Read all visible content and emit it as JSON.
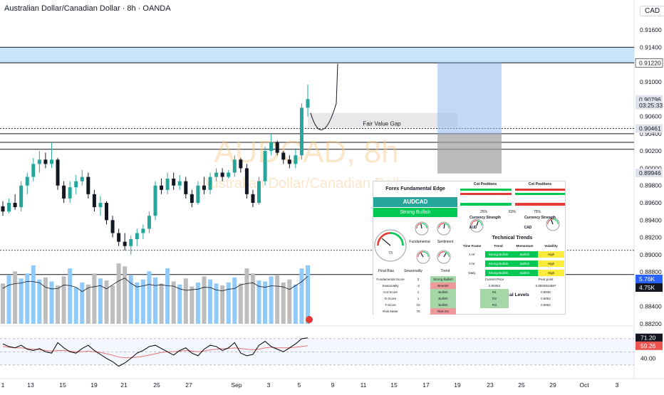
{
  "header": {
    "title": "Australian Dollar/Canadian Dollar · 8h · OANDA",
    "currency": "CAD"
  },
  "watermark": {
    "symbol": "AUDCAD, 8h",
    "name": "Australian Dollar/Canadian Dollar"
  },
  "annotations": {
    "fvg_label": "Fair Value Gap"
  },
  "colors": {
    "up": "#26a69a",
    "down": "#131722",
    "volume_up": "#90caf9",
    "volume_down": "#bdbdbd",
    "zone": "#bbdefb",
    "rsi": "#000000",
    "rsi_ma": "#e57373"
  },
  "price_axis": {
    "ticks": [
      "0.91600",
      "0.91400",
      "0.91200",
      "0.91000",
      "0.90800",
      "0.90600",
      "0.90400",
      "0.90200",
      "0.90000",
      "0.89800",
      "0.89600",
      "0.89400",
      "0.89200",
      "0.89000",
      "0.88800",
      "0.88600",
      "0.88400",
      "0.88200"
    ],
    "labels": [
      {
        "text": "0.91220",
        "bg": "#ffffff",
        "fg": "#131722",
        "price": 0.9122
      },
      {
        "text": "0.90796",
        "bg": "#e0e3eb",
        "fg": "#131722",
        "price": 0.90796
      },
      {
        "text": "03:25:33",
        "bg": "#e0e3eb",
        "fg": "#131722",
        "price": 0.9073
      },
      {
        "text": "0.90461",
        "bg": "#e0e3eb",
        "fg": "#131722",
        "price": 0.90461
      },
      {
        "text": "0.89946",
        "bg": "#e0e3eb",
        "fg": "#131722",
        "price": 0.89946
      },
      {
        "text": "5.76K",
        "bg": "#2962ff",
        "fg": "#ffffff",
        "price": 0.8876
      },
      {
        "text": "4.75K",
        "bg": "#131722",
        "fg": "#ffffff",
        "price": 0.8868
      }
    ]
  },
  "rsi_axis": {
    "labels": [
      {
        "text": "71.20",
        "bg": "#131722",
        "fg": "#ffffff",
        "v": 71.2
      },
      {
        "text": "59.26",
        "bg": "#ef5350",
        "fg": "#ffffff",
        "v": 59.26
      },
      {
        "text": "40.00",
        "bg": "none",
        "fg": "#131722",
        "v": 40
      }
    ]
  },
  "time_axis": [
    "1",
    "13",
    "15",
    "19",
    "21",
    "25",
    "27",
    "Sep",
    "3",
    "5",
    "9",
    "11",
    "15",
    "17",
    "19",
    "23",
    "25",
    "29",
    "Oct",
    "3"
  ],
  "panel": {
    "title": "Forex Fundamental Edge",
    "pair": "AUDCAD",
    "bias": "Strong Bullish",
    "gauge_value": "73",
    "cot_left_title": "Cot Positions",
    "cot_right_title": "Cot Positions",
    "cot_left_pct": [
      "25%",
      "63%"
    ],
    "cot_right_pct": [
      "75%"
    ],
    "strength_title": "Currency Strength",
    "strength_left": "AUD",
    "strength_right": "CAD",
    "labels": {
      "fundamental": "Fundamental",
      "sentiment": "Sentiment",
      "final_bias": "Final Bias",
      "seasonality": "Seasonality",
      "trend": "Trend",
      "trend_val": "Strong Bullish",
      "bias_val": "Bullish"
    },
    "tech_trends_title": "Technical Trends",
    "tech_trends_head": [
      "Time Frame",
      "Trend",
      "Momentum",
      "Volatility"
    ],
    "tech_trends_rows": [
      [
        "1 Hr",
        "Strong Bullish",
        "Bullish",
        "High"
      ],
      [
        "4 Hr",
        "Strong Bullish",
        "Bullish",
        "High"
      ],
      [
        "Daily",
        "Strong Bullish",
        "Bullish",
        "High"
      ]
    ],
    "score_rows": [
      [
        "Fundamental Score",
        "2"
      ],
      [
        "Seasonality",
        "-2"
      ],
      [
        "Cot Score",
        "1"
      ],
      [
        "G-Score",
        "1"
      ],
      [
        "T-Score",
        "10"
      ],
      [
        "Risk Meter",
        "75"
      ]
    ],
    "score_vals": [
      "Strong Bullish",
      "Bearish",
      "Bullish",
      "Bullish",
      "Bullish",
      "Risk On"
    ],
    "tech_levels_title": "Technical Levels",
    "tech_levels_head": [
      "Current Price",
      "Pivot point"
    ],
    "tech_levels_rows": [
      [
        "0.90354",
        "0.9002944687"
      ],
      [
        "R1",
        "0.9036"
      ],
      [
        "R2",
        "0.9052"
      ],
      [
        "R3",
        "0.9062"
      ]
    ]
  },
  "chart_data": {
    "type": "candlestick",
    "title": "Australian Dollar/Canadian Dollar · 8h · OANDA",
    "yrange": [
      0.882,
      0.917
    ],
    "horizontal_levels": [
      0.914,
      0.9122,
      0.90461,
      0.904,
      0.903,
      0.9022,
      0.8905,
      0.8877
    ],
    "candles": [
      {
        "o": 0.8956,
        "h": 0.8962,
        "l": 0.8945,
        "c": 0.895
      },
      {
        "o": 0.895,
        "h": 0.8965,
        "l": 0.8948,
        "c": 0.896
      },
      {
        "o": 0.896,
        "h": 0.897,
        "l": 0.8952,
        "c": 0.8955
      },
      {
        "o": 0.8955,
        "h": 0.8985,
        "l": 0.895,
        "c": 0.898
      },
      {
        "o": 0.898,
        "h": 0.8995,
        "l": 0.897,
        "c": 0.899
      },
      {
        "o": 0.899,
        "h": 0.9012,
        "l": 0.8985,
        "c": 0.9005
      },
      {
        "o": 0.9005,
        "h": 0.902,
        "l": 0.8995,
        "c": 0.901
      },
      {
        "o": 0.901,
        "h": 0.9018,
        "l": 0.9,
        "c": 0.9005
      },
      {
        "o": 0.9005,
        "h": 0.903,
        "l": 0.9,
        "c": 0.901
      },
      {
        "o": 0.901,
        "h": 0.9012,
        "l": 0.8975,
        "c": 0.898
      },
      {
        "o": 0.898,
        "h": 0.8985,
        "l": 0.896,
        "c": 0.8965
      },
      {
        "o": 0.8965,
        "h": 0.8985,
        "l": 0.896,
        "c": 0.8978
      },
      {
        "o": 0.8978,
        "h": 0.8992,
        "l": 0.897,
        "c": 0.8985
      },
      {
        "o": 0.8985,
        "h": 0.8998,
        "l": 0.898,
        "c": 0.899
      },
      {
        "o": 0.899,
        "h": 0.8995,
        "l": 0.8965,
        "c": 0.897
      },
      {
        "o": 0.897,
        "h": 0.8975,
        "l": 0.895,
        "c": 0.8955
      },
      {
        "o": 0.8955,
        "h": 0.8968,
        "l": 0.8945,
        "c": 0.896
      },
      {
        "o": 0.896,
        "h": 0.8962,
        "l": 0.8935,
        "c": 0.894
      },
      {
        "o": 0.894,
        "h": 0.8945,
        "l": 0.892,
        "c": 0.8925
      },
      {
        "o": 0.8925,
        "h": 0.893,
        "l": 0.891,
        "c": 0.8915
      },
      {
        "o": 0.8915,
        "h": 0.8925,
        "l": 0.8905,
        "c": 0.891
      },
      {
        "o": 0.891,
        "h": 0.8922,
        "l": 0.89,
        "c": 0.8918
      },
      {
        "o": 0.8918,
        "h": 0.893,
        "l": 0.891,
        "c": 0.8925
      },
      {
        "o": 0.8925,
        "h": 0.8935,
        "l": 0.8918,
        "c": 0.893
      },
      {
        "o": 0.893,
        "h": 0.895,
        "l": 0.8925,
        "c": 0.8945
      },
      {
        "o": 0.8945,
        "h": 0.8985,
        "l": 0.894,
        "c": 0.898
      },
      {
        "o": 0.898,
        "h": 0.8988,
        "l": 0.897,
        "c": 0.8975
      },
      {
        "o": 0.8975,
        "h": 0.8995,
        "l": 0.897,
        "c": 0.8988
      },
      {
        "o": 0.8988,
        "h": 0.8995,
        "l": 0.8975,
        "c": 0.898
      },
      {
        "o": 0.898,
        "h": 0.8992,
        "l": 0.8975,
        "c": 0.8985
      },
      {
        "o": 0.8985,
        "h": 0.899,
        "l": 0.8965,
        "c": 0.897
      },
      {
        "o": 0.897,
        "h": 0.8975,
        "l": 0.8955,
        "c": 0.896
      },
      {
        "o": 0.896,
        "h": 0.8985,
        "l": 0.8958,
        "c": 0.898
      },
      {
        "o": 0.898,
        "h": 0.899,
        "l": 0.897,
        "c": 0.8975
      },
      {
        "o": 0.8975,
        "h": 0.8995,
        "l": 0.897,
        "c": 0.899
      },
      {
        "o": 0.899,
        "h": 0.9,
        "l": 0.8985,
        "c": 0.8995
      },
      {
        "o": 0.8995,
        "h": 0.9,
        "l": 0.8985,
        "c": 0.899
      },
      {
        "o": 0.899,
        "h": 0.8998,
        "l": 0.8988,
        "c": 0.8995
      },
      {
        "o": 0.8995,
        "h": 0.9015,
        "l": 0.899,
        "c": 0.901
      },
      {
        "o": 0.901,
        "h": 0.9012,
        "l": 0.8995,
        "c": 0.9
      },
      {
        "o": 0.9,
        "h": 0.9005,
        "l": 0.8965,
        "c": 0.897
      },
      {
        "o": 0.897,
        "h": 0.8975,
        "l": 0.8955,
        "c": 0.896
      },
      {
        "o": 0.896,
        "h": 0.899,
        "l": 0.8958,
        "c": 0.8985
      },
      {
        "o": 0.8985,
        "h": 0.9025,
        "l": 0.898,
        "c": 0.902
      },
      {
        "o": 0.902,
        "h": 0.904,
        "l": 0.9015,
        "c": 0.903
      },
      {
        "o": 0.903,
        "h": 0.9032,
        "l": 0.9015,
        "c": 0.9018
      },
      {
        "o": 0.9018,
        "h": 0.902,
        "l": 0.9005,
        "c": 0.901
      },
      {
        "o": 0.901,
        "h": 0.9015,
        "l": 0.9,
        "c": 0.9005
      },
      {
        "o": 0.9005,
        "h": 0.9022,
        "l": 0.9,
        "c": 0.9015
      },
      {
        "o": 0.9015,
        "h": 0.9075,
        "l": 0.901,
        "c": 0.907
      },
      {
        "o": 0.907,
        "h": 0.9097,
        "l": 0.906,
        "c": 0.908
      }
    ],
    "volume": [
      40,
      48,
      52,
      45,
      50,
      58,
      44,
      46,
      42,
      38,
      47,
      55,
      36,
      41,
      39,
      50,
      45,
      43,
      38,
      60,
      57,
      48,
      41,
      44,
      52,
      46,
      40,
      55,
      42,
      39,
      45,
      37,
      41,
      47,
      44,
      40,
      38,
      41,
      46,
      40,
      55,
      50,
      43,
      42,
      47,
      48,
      41,
      44,
      39,
      55,
      58
    ],
    "rsi": [
      62,
      58,
      56,
      60,
      54,
      52,
      55,
      50,
      48,
      64,
      56,
      50,
      48,
      55,
      60,
      52,
      46,
      40,
      35,
      28,
      33,
      40,
      48,
      52,
      58,
      60,
      55,
      50,
      45,
      52,
      56,
      48,
      44,
      54,
      60,
      58,
      52,
      56,
      64,
      48,
      44,
      46,
      60,
      66,
      58,
      54,
      50,
      56,
      62,
      70,
      71.2
    ],
    "rsi_ma": [
      58,
      57,
      56,
      56,
      55,
      54,
      53,
      52,
      51,
      52,
      52,
      51,
      50,
      50,
      51,
      50,
      49,
      47,
      45,
      42,
      41,
      41,
      42,
      43,
      45,
      47,
      49,
      50,
      50,
      51,
      52,
      51,
      50,
      51,
      53,
      54,
      55,
      55,
      56,
      55,
      54,
      53,
      54,
      56,
      57,
      56,
      56,
      56,
      57,
      58,
      59.26
    ],
    "zone_upper": [
      0.9122,
      0.914
    ],
    "fvg": [
      0.9047,
      0.9064
    ],
    "rsi_range": [
      20,
      85
    ]
  }
}
